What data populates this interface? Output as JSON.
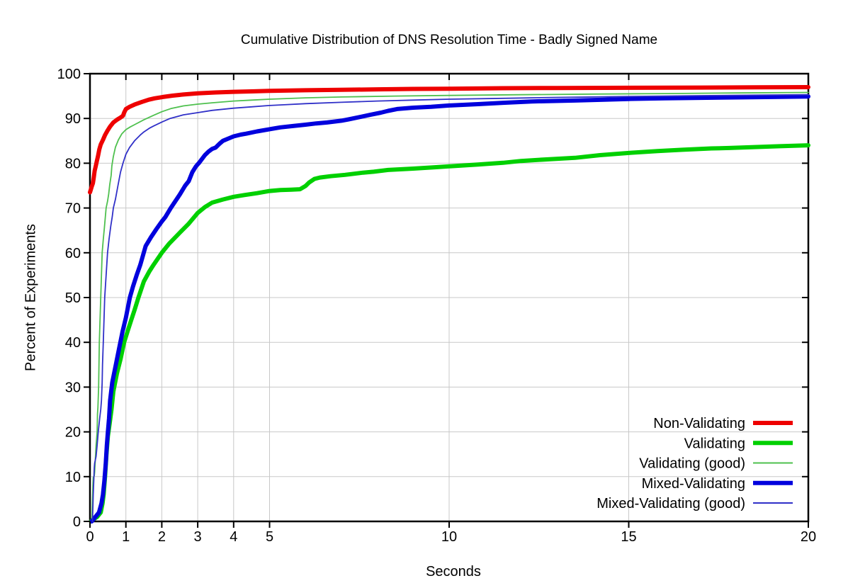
{
  "chart_data": {
    "type": "line",
    "title": "Cumulative Distribution of DNS Resolution Time - Badly Signed Name",
    "xlabel": "Seconds",
    "ylabel": "Percent of Experiments",
    "xlim": [
      0,
      20
    ],
    "ylim": [
      0,
      100
    ],
    "xticks": [
      0,
      1,
      2,
      3,
      4,
      5,
      10,
      15,
      20
    ],
    "yticks": [
      0,
      10,
      20,
      30,
      40,
      50,
      60,
      70,
      80,
      90,
      100
    ],
    "grid": true,
    "grid_color": "#c8c8c8",
    "border_color": "#000000",
    "legend_position": "bottom-right",
    "series": [
      {
        "name": "Non-Validating",
        "color": "#ee0000",
        "width": 6,
        "points": [
          [
            0,
            73.5
          ],
          [
            0.02,
            74
          ],
          [
            0.05,
            74.8
          ],
          [
            0.08,
            75.5
          ],
          [
            0.1,
            76.5
          ],
          [
            0.13,
            78.3
          ],
          [
            0.16,
            79.3
          ],
          [
            0.19,
            80.4
          ],
          [
            0.22,
            81.5
          ],
          [
            0.26,
            83.1
          ],
          [
            0.3,
            84.2
          ],
          [
            0.36,
            85.2
          ],
          [
            0.42,
            86.3
          ],
          [
            0.49,
            87.3
          ],
          [
            0.56,
            88.2
          ],
          [
            0.65,
            89.1
          ],
          [
            0.75,
            89.7
          ],
          [
            0.85,
            90.2
          ],
          [
            0.92,
            90.6
          ],
          [
            0.95,
            91.3
          ],
          [
            1.0,
            92.1
          ],
          [
            1.1,
            92.6
          ],
          [
            1.24,
            93.1
          ],
          [
            1.45,
            93.7
          ],
          [
            1.64,
            94.2
          ],
          [
            1.8,
            94.5
          ],
          [
            2.03,
            94.8
          ],
          [
            2.3,
            95.1
          ],
          [
            2.6,
            95.35
          ],
          [
            3.0,
            95.6
          ],
          [
            3.5,
            95.8
          ],
          [
            4.0,
            95.95
          ],
          [
            4.5,
            96.05
          ],
          [
            5.0,
            96.15
          ],
          [
            6.0,
            96.3
          ],
          [
            7.0,
            96.4
          ],
          [
            8.0,
            96.5
          ],
          [
            9.0,
            96.6
          ],
          [
            10.0,
            96.65
          ],
          [
            11.5,
            96.75
          ],
          [
            13.0,
            96.8
          ],
          [
            15.0,
            96.85
          ],
          [
            17.0,
            96.9
          ],
          [
            18.5,
            96.95
          ],
          [
            20.0,
            97.0
          ]
        ]
      },
      {
        "name": "Validating",
        "color": "#00d000",
        "width": 6,
        "points": [
          [
            0.03,
            0
          ],
          [
            0.1,
            0.5
          ],
          [
            0.2,
            1
          ],
          [
            0.3,
            2
          ],
          [
            0.35,
            4
          ],
          [
            0.38,
            6
          ],
          [
            0.42,
            10
          ],
          [
            0.46,
            15
          ],
          [
            0.5,
            19
          ],
          [
            0.55,
            22
          ],
          [
            0.6,
            25
          ],
          [
            0.65,
            29
          ],
          [
            0.75,
            33
          ],
          [
            0.85,
            36.2
          ],
          [
            0.95,
            40
          ],
          [
            1.05,
            42.5
          ],
          [
            1.15,
            45
          ],
          [
            1.24,
            47.2
          ],
          [
            1.35,
            50
          ],
          [
            1.5,
            53.6
          ],
          [
            1.65,
            55.8
          ],
          [
            1.77,
            57.3
          ],
          [
            2.0,
            60
          ],
          [
            2.2,
            62
          ],
          [
            2.5,
            64.5
          ],
          [
            2.75,
            66.5
          ],
          [
            3.0,
            68.9
          ],
          [
            3.2,
            70.2
          ],
          [
            3.4,
            71.2
          ],
          [
            3.7,
            71.9
          ],
          [
            4.0,
            72.5
          ],
          [
            4.3,
            72.9
          ],
          [
            4.65,
            73.3
          ],
          [
            5.0,
            73.8
          ],
          [
            5.3,
            74.0
          ],
          [
            5.6,
            74.1
          ],
          [
            5.85,
            74.2
          ],
          [
            6.0,
            74.9
          ],
          [
            6.1,
            75.7
          ],
          [
            6.25,
            76.5
          ],
          [
            6.4,
            76.8
          ],
          [
            6.7,
            77.1
          ],
          [
            7.1,
            77.4
          ],
          [
            7.6,
            77.9
          ],
          [
            7.9,
            78.1
          ],
          [
            8.3,
            78.5
          ],
          [
            9.0,
            78.8
          ],
          [
            9.6,
            79.1
          ],
          [
            10.0,
            79.3
          ],
          [
            10.8,
            79.7
          ],
          [
            11.5,
            80.1
          ],
          [
            12.0,
            80.5
          ],
          [
            12.8,
            80.9
          ],
          [
            13.5,
            81.2
          ],
          [
            14.2,
            81.8
          ],
          [
            15.0,
            82.3
          ],
          [
            15.8,
            82.7
          ],
          [
            16.5,
            83.0
          ],
          [
            17.3,
            83.3
          ],
          [
            17.8,
            83.4
          ],
          [
            18.5,
            83.6
          ],
          [
            19.2,
            83.8
          ],
          [
            20.0,
            84.0
          ]
        ]
      },
      {
        "name": "Validating (good)",
        "color": "#4ec04e",
        "width": 1.8,
        "points": [
          [
            0.05,
            0
          ],
          [
            0.06,
            2
          ],
          [
            0.07,
            5
          ],
          [
            0.08,
            8
          ],
          [
            0.09,
            9.8
          ],
          [
            0.12,
            10.2
          ],
          [
            0.13,
            11
          ],
          [
            0.15,
            14
          ],
          [
            0.17,
            17
          ],
          [
            0.2,
            20
          ],
          [
            0.21,
            24
          ],
          [
            0.22,
            25.4
          ],
          [
            0.24,
            30
          ],
          [
            0.25,
            35
          ],
          [
            0.26,
            40
          ],
          [
            0.28,
            45
          ],
          [
            0.3,
            50
          ],
          [
            0.32,
            55
          ],
          [
            0.34,
            60
          ],
          [
            0.37,
            63
          ],
          [
            0.4,
            65.5
          ],
          [
            0.45,
            70
          ],
          [
            0.49,
            71.5
          ],
          [
            0.52,
            73.1
          ],
          [
            0.55,
            75.2
          ],
          [
            0.59,
            77.3
          ],
          [
            0.61,
            79.4
          ],
          [
            0.65,
            81.5
          ],
          [
            0.71,
            83.6
          ],
          [
            0.79,
            85.2
          ],
          [
            0.89,
            86.6
          ],
          [
            1.0,
            87.5
          ],
          [
            1.12,
            88.1
          ],
          [
            1.24,
            88.6
          ],
          [
            1.5,
            89.7
          ],
          [
            1.77,
            90.7
          ],
          [
            2.0,
            91.5
          ],
          [
            2.25,
            92.2
          ],
          [
            2.6,
            92.8
          ],
          [
            3.0,
            93.2
          ],
          [
            3.4,
            93.5
          ],
          [
            4.0,
            93.9
          ],
          [
            4.5,
            94.1
          ],
          [
            5.0,
            94.3
          ],
          [
            6.0,
            94.6
          ],
          [
            7.0,
            94.8
          ],
          [
            8.5,
            95.0
          ],
          [
            10.0,
            95.15
          ],
          [
            12.0,
            95.3
          ],
          [
            14.0,
            95.45
          ],
          [
            16.0,
            95.55
          ],
          [
            18.0,
            95.7
          ],
          [
            20.0,
            95.8
          ]
        ]
      },
      {
        "name": "Mixed-Validating",
        "color": "#0000dd",
        "width": 6,
        "points": [
          [
            0.05,
            0
          ],
          [
            0.15,
            1
          ],
          [
            0.25,
            2
          ],
          [
            0.32,
            4
          ],
          [
            0.36,
            6
          ],
          [
            0.4,
            9
          ],
          [
            0.44,
            13
          ],
          [
            0.47,
            17
          ],
          [
            0.5,
            20
          ],
          [
            0.53,
            23
          ],
          [
            0.56,
            27
          ],
          [
            0.62,
            31
          ],
          [
            0.72,
            35
          ],
          [
            0.82,
            39
          ],
          [
            0.91,
            42.5
          ],
          [
            1.0,
            45.5
          ],
          [
            1.11,
            50
          ],
          [
            1.2,
            52.5
          ],
          [
            1.3,
            55
          ],
          [
            1.4,
            57.3
          ],
          [
            1.55,
            61.5
          ],
          [
            1.7,
            63.5
          ],
          [
            1.85,
            65.3
          ],
          [
            2.0,
            67
          ],
          [
            2.1,
            68
          ],
          [
            2.25,
            70
          ],
          [
            2.4,
            71.8
          ],
          [
            2.5,
            73
          ],
          [
            2.65,
            75
          ],
          [
            2.75,
            76
          ],
          [
            2.85,
            78
          ],
          [
            2.95,
            79.3
          ],
          [
            3.05,
            80.2
          ],
          [
            3.2,
            81.8
          ],
          [
            3.3,
            82.6
          ],
          [
            3.4,
            83.2
          ],
          [
            3.5,
            83.5
          ],
          [
            3.6,
            84.3
          ],
          [
            3.7,
            85
          ],
          [
            3.85,
            85.5
          ],
          [
            4.0,
            86
          ],
          [
            4.2,
            86.4
          ],
          [
            4.35,
            86.6
          ],
          [
            4.65,
            87.1
          ],
          [
            5.0,
            87.6
          ],
          [
            5.3,
            88.0
          ],
          [
            5.65,
            88.3
          ],
          [
            6.0,
            88.6
          ],
          [
            6.3,
            88.9
          ],
          [
            6.6,
            89.1
          ],
          [
            7.0,
            89.5
          ],
          [
            7.2,
            89.8
          ],
          [
            7.5,
            90.3
          ],
          [
            7.8,
            90.8
          ],
          [
            8.1,
            91.3
          ],
          [
            8.3,
            91.7
          ],
          [
            8.55,
            92.1
          ],
          [
            9.0,
            92.4
          ],
          [
            9.5,
            92.6
          ],
          [
            10.0,
            92.9
          ],
          [
            10.8,
            93.2
          ],
          [
            11.5,
            93.5
          ],
          [
            12.3,
            93.8
          ],
          [
            13.5,
            94.0
          ],
          [
            14.3,
            94.2
          ],
          [
            15.0,
            94.35
          ],
          [
            16.0,
            94.5
          ],
          [
            17.0,
            94.6
          ],
          [
            18.0,
            94.7
          ],
          [
            19.0,
            94.8
          ],
          [
            20.0,
            94.9
          ]
        ]
      },
      {
        "name": "Mixed-Validating (good)",
        "color": "#3030c8",
        "width": 1.8,
        "points": [
          [
            0.07,
            0
          ],
          [
            0.08,
            3
          ],
          [
            0.09,
            6
          ],
          [
            0.1,
            8
          ],
          [
            0.11,
            10
          ],
          [
            0.12,
            12
          ],
          [
            0.13,
            13
          ],
          [
            0.17,
            14.5
          ],
          [
            0.2,
            17
          ],
          [
            0.23,
            20
          ],
          [
            0.27,
            23
          ],
          [
            0.3,
            25
          ],
          [
            0.32,
            27
          ],
          [
            0.33,
            29
          ],
          [
            0.34,
            31
          ],
          [
            0.35,
            35
          ],
          [
            0.37,
            40
          ],
          [
            0.39,
            45
          ],
          [
            0.41,
            50
          ],
          [
            0.45,
            55
          ],
          [
            0.49,
            60
          ],
          [
            0.53,
            63
          ],
          [
            0.58,
            66
          ],
          [
            0.62,
            68
          ],
          [
            0.65,
            70
          ],
          [
            0.71,
            72
          ],
          [
            0.78,
            75
          ],
          [
            0.85,
            78
          ],
          [
            0.92,
            80
          ],
          [
            1.0,
            82
          ],
          [
            1.1,
            83.5
          ],
          [
            1.24,
            85
          ],
          [
            1.4,
            86.3
          ],
          [
            1.5,
            87
          ],
          [
            1.65,
            87.8
          ],
          [
            1.77,
            88.3
          ],
          [
            2.0,
            89.2
          ],
          [
            2.23,
            90.0
          ],
          [
            2.6,
            90.8
          ],
          [
            3.0,
            91.3
          ],
          [
            3.4,
            91.8
          ],
          [
            4.0,
            92.3
          ],
          [
            4.5,
            92.6
          ],
          [
            5.0,
            92.9
          ],
          [
            5.5,
            93.1
          ],
          [
            6.0,
            93.3
          ],
          [
            7.0,
            93.6
          ],
          [
            8.0,
            93.9
          ],
          [
            9.0,
            94.1
          ],
          [
            10.0,
            94.3
          ],
          [
            11.5,
            94.5
          ],
          [
            13.0,
            94.7
          ],
          [
            15.0,
            94.9
          ],
          [
            17.0,
            95.1
          ],
          [
            18.5,
            95.2
          ],
          [
            20.0,
            95.3
          ]
        ]
      }
    ]
  }
}
